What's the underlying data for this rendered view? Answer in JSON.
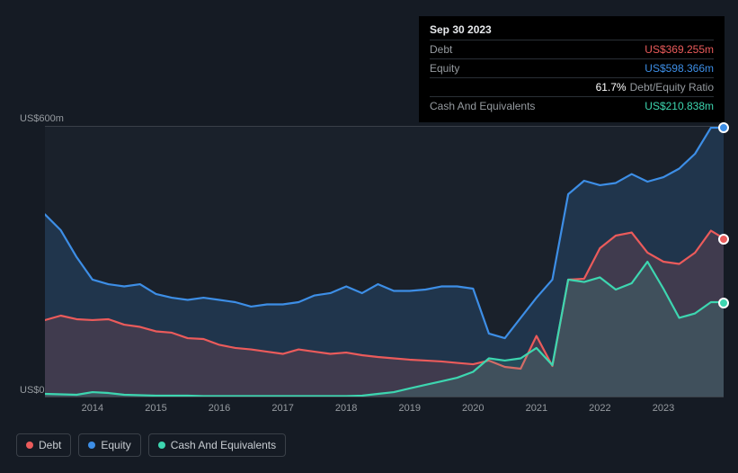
{
  "tooltip": {
    "date": "Sep 30 2023",
    "rows": [
      {
        "label": "Debt",
        "value": "US$369.255m",
        "color": "#eb5b5b"
      },
      {
        "label": "Equity",
        "value": "US$598.366m",
        "color": "#3d8ee6"
      },
      {
        "label": "",
        "value": "61.7%",
        "suffix": "Debt/Equity Ratio",
        "color": "#ffffff"
      },
      {
        "label": "Cash And Equivalents",
        "value": "US$210.838m",
        "color": "#3dd6b0"
      }
    ]
  },
  "chart": {
    "type": "area",
    "background_color": "#1a212b",
    "page_background": "#151b24",
    "grid_color": "#3a4048",
    "y_axis": {
      "min": 0,
      "max": 600,
      "ticks": [
        {
          "v": 600,
          "label": "US$600m"
        },
        {
          "v": 0,
          "label": "US$0"
        }
      ],
      "label_color": "#969ba0",
      "label_fontsize": 11
    },
    "x_axis": {
      "min": 2013.25,
      "max": 2023.95,
      "tick_years": [
        2014,
        2015,
        2016,
        2017,
        2018,
        2019,
        2020,
        2021,
        2022,
        2023
      ],
      "label_color": "#969ba0",
      "label_fontsize": 11
    },
    "series": [
      {
        "name": "Equity",
        "color": "#3d8ee6",
        "fill_opacity": 0.18,
        "line_width": 2.2,
        "points": [
          [
            2013.25,
            405
          ],
          [
            2013.5,
            370
          ],
          [
            2013.75,
            310
          ],
          [
            2014.0,
            260
          ],
          [
            2014.25,
            250
          ],
          [
            2014.5,
            245
          ],
          [
            2014.75,
            250
          ],
          [
            2015.0,
            228
          ],
          [
            2015.25,
            220
          ],
          [
            2015.5,
            215
          ],
          [
            2015.75,
            220
          ],
          [
            2016.0,
            215
          ],
          [
            2016.25,
            210
          ],
          [
            2016.5,
            200
          ],
          [
            2016.75,
            205
          ],
          [
            2017.0,
            205
          ],
          [
            2017.25,
            210
          ],
          [
            2017.5,
            225
          ],
          [
            2017.75,
            230
          ],
          [
            2018.0,
            245
          ],
          [
            2018.25,
            230
          ],
          [
            2018.5,
            250
          ],
          [
            2018.75,
            235
          ],
          [
            2019.0,
            235
          ],
          [
            2019.25,
            238
          ],
          [
            2019.5,
            245
          ],
          [
            2019.75,
            245
          ],
          [
            2020.0,
            240
          ],
          [
            2020.25,
            140
          ],
          [
            2020.5,
            130
          ],
          [
            2020.75,
            175
          ],
          [
            2021.0,
            220
          ],
          [
            2021.25,
            260
          ],
          [
            2021.5,
            450
          ],
          [
            2021.75,
            480
          ],
          [
            2022.0,
            470
          ],
          [
            2022.25,
            475
          ],
          [
            2022.5,
            495
          ],
          [
            2022.75,
            478
          ],
          [
            2023.0,
            488
          ],
          [
            2023.25,
            507
          ],
          [
            2023.5,
            540
          ],
          [
            2023.75,
            598
          ],
          [
            2023.95,
            598
          ]
        ]
      },
      {
        "name": "Debt",
        "color": "#eb5b5b",
        "fill_opacity": 0.16,
        "line_width": 2.2,
        "points": [
          [
            2013.25,
            170
          ],
          [
            2013.5,
            180
          ],
          [
            2013.75,
            172
          ],
          [
            2014.0,
            170
          ],
          [
            2014.25,
            172
          ],
          [
            2014.5,
            160
          ],
          [
            2014.75,
            155
          ],
          [
            2015.0,
            145
          ],
          [
            2015.25,
            142
          ],
          [
            2015.5,
            130
          ],
          [
            2015.75,
            128
          ],
          [
            2016.0,
            115
          ],
          [
            2016.25,
            108
          ],
          [
            2016.5,
            105
          ],
          [
            2016.75,
            100
          ],
          [
            2017.0,
            95
          ],
          [
            2017.25,
            105
          ],
          [
            2017.5,
            100
          ],
          [
            2017.75,
            95
          ],
          [
            2018.0,
            98
          ],
          [
            2018.25,
            92
          ],
          [
            2018.5,
            88
          ],
          [
            2018.75,
            85
          ],
          [
            2019.0,
            82
          ],
          [
            2019.25,
            80
          ],
          [
            2019.5,
            78
          ],
          [
            2019.75,
            75
          ],
          [
            2020.0,
            72
          ],
          [
            2020.25,
            80
          ],
          [
            2020.5,
            66
          ],
          [
            2020.75,
            62
          ],
          [
            2021.0,
            135
          ],
          [
            2021.25,
            68
          ],
          [
            2021.5,
            260
          ],
          [
            2021.75,
            262
          ],
          [
            2022.0,
            330
          ],
          [
            2022.25,
            358
          ],
          [
            2022.5,
            365
          ],
          [
            2022.75,
            320
          ],
          [
            2023.0,
            300
          ],
          [
            2023.25,
            295
          ],
          [
            2023.5,
            320
          ],
          [
            2023.75,
            369
          ],
          [
            2023.95,
            352
          ]
        ]
      },
      {
        "name": "Cash And Equivalents",
        "color": "#3dd6b0",
        "fill_opacity": 0.14,
        "line_width": 2.2,
        "points": [
          [
            2013.25,
            6
          ],
          [
            2013.5,
            5
          ],
          [
            2013.75,
            4
          ],
          [
            2014.0,
            10
          ],
          [
            2014.25,
            8
          ],
          [
            2014.5,
            4
          ],
          [
            2014.75,
            3
          ],
          [
            2015.0,
            2
          ],
          [
            2015.25,
            2
          ],
          [
            2015.5,
            2
          ],
          [
            2015.75,
            1
          ],
          [
            2016.0,
            1
          ],
          [
            2016.25,
            1
          ],
          [
            2016.5,
            1
          ],
          [
            2016.75,
            1
          ],
          [
            2017.0,
            1
          ],
          [
            2017.25,
            1
          ],
          [
            2017.5,
            1
          ],
          [
            2017.75,
            1
          ],
          [
            2018.0,
            1
          ],
          [
            2018.25,
            2
          ],
          [
            2018.5,
            6
          ],
          [
            2018.75,
            10
          ],
          [
            2019.0,
            18
          ],
          [
            2019.25,
            26
          ],
          [
            2019.5,
            34
          ],
          [
            2019.75,
            42
          ],
          [
            2020.0,
            55
          ],
          [
            2020.25,
            85
          ],
          [
            2020.5,
            80
          ],
          [
            2020.75,
            85
          ],
          [
            2021.0,
            108
          ],
          [
            2021.25,
            70
          ],
          [
            2021.5,
            260
          ],
          [
            2021.75,
            255
          ],
          [
            2022.0,
            265
          ],
          [
            2022.25,
            238
          ],
          [
            2022.5,
            252
          ],
          [
            2022.75,
            300
          ],
          [
            2023.0,
            240
          ],
          [
            2023.25,
            175
          ],
          [
            2023.5,
            185
          ],
          [
            2023.75,
            210
          ],
          [
            2023.95,
            210
          ]
        ]
      }
    ],
    "hover_x": 2023.75,
    "hover_markers": [
      {
        "series": "Equity",
        "x": 2023.95,
        "y": 598,
        "color": "#3d8ee6"
      },
      {
        "series": "Debt",
        "x": 2023.95,
        "y": 352,
        "color": "#eb5b5b"
      },
      {
        "series": "Cash And Equivalents",
        "x": 2023.95,
        "y": 210,
        "color": "#3dd6b0"
      }
    ]
  },
  "legend": {
    "items": [
      {
        "label": "Debt",
        "color": "#eb5b5b"
      },
      {
        "label": "Equity",
        "color": "#3d8ee6"
      },
      {
        "label": "Cash And Equivalents",
        "color": "#3dd6b0"
      }
    ],
    "border_color": "#3a4048",
    "fontsize": 12
  }
}
